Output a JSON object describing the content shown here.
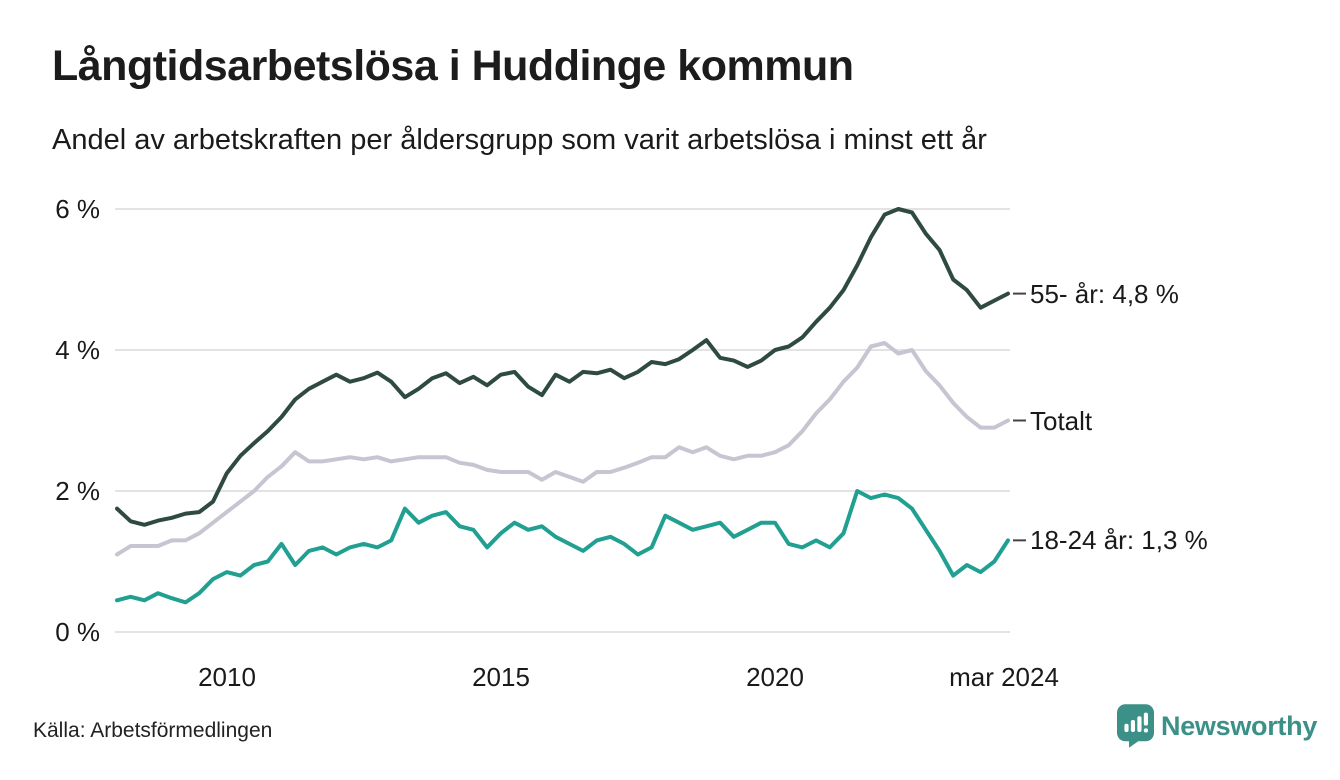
{
  "header": {
    "title": "Långtidsarbetslösa i Huddinge kommun",
    "subtitle": "Andel av arbetskraften per åldersgrupp som varit arbetslösa i minst ett år"
  },
  "footer": {
    "source": "Källa: Arbetsförmedlingen",
    "brand": "Newsworthy"
  },
  "colors": {
    "text": "#1a1a1a",
    "grid": "#e3e3e5",
    "label_dash": "#444444",
    "brand_teal": "#3b9187",
    "series_55": "#2e4a42",
    "series_total": "#c6c5d1",
    "series_18_24": "#21a092"
  },
  "chart_data": {
    "type": "line",
    "title": "Långtidsarbetslösa i Huddinge kommun",
    "subtitle": "Andel av arbetskraften per åldersgrupp som varit arbetslösa i minst ett år",
    "xlabel": "",
    "ylabel": "",
    "xlim": [
      2008.0,
      2024.25
    ],
    "ylim": [
      0,
      6
    ],
    "grid": true,
    "legend_position": "right-end-labels",
    "x": [
      2008.0,
      2008.25,
      2008.5,
      2008.75,
      2009.0,
      2009.25,
      2009.5,
      2009.75,
      2010.0,
      2010.25,
      2010.5,
      2010.75,
      2011.0,
      2011.25,
      2011.5,
      2011.75,
      2012.0,
      2012.25,
      2012.5,
      2012.75,
      2013.0,
      2013.25,
      2013.5,
      2013.75,
      2014.0,
      2014.25,
      2014.5,
      2014.75,
      2015.0,
      2015.25,
      2015.5,
      2015.75,
      2016.0,
      2016.25,
      2016.5,
      2016.75,
      2017.0,
      2017.25,
      2017.5,
      2017.75,
      2018.0,
      2018.25,
      2018.5,
      2018.75,
      2019.0,
      2019.25,
      2019.5,
      2019.75,
      2020.0,
      2020.25,
      2020.5,
      2020.75,
      2021.0,
      2021.25,
      2021.5,
      2021.75,
      2022.0,
      2022.25,
      2022.5,
      2022.75,
      2023.0,
      2023.25,
      2023.5,
      2023.75,
      2024.0,
      2024.25
    ],
    "series": [
      {
        "name": "55- år",
        "label": "55- år: 4,8 %",
        "end_value_text": "4,8 %",
        "color": "#2e4a42",
        "values": [
          1.75,
          1.57,
          1.52,
          1.58,
          1.62,
          1.68,
          1.7,
          1.85,
          2.25,
          2.5,
          2.68,
          2.85,
          3.05,
          3.3,
          3.45,
          3.55,
          3.65,
          3.55,
          3.6,
          3.68,
          3.55,
          3.33,
          3.45,
          3.6,
          3.67,
          3.53,
          3.62,
          3.5,
          3.65,
          3.69,
          3.48,
          3.36,
          3.65,
          3.55,
          3.69,
          3.67,
          3.72,
          3.6,
          3.69,
          3.83,
          3.8,
          3.87,
          4.0,
          4.14,
          3.89,
          3.85,
          3.76,
          3.85,
          4.0,
          4.05,
          4.18,
          4.4,
          4.6,
          4.85,
          5.2,
          5.6,
          5.92,
          6.0,
          5.95,
          5.65,
          5.42,
          5.0,
          4.85,
          4.6,
          4.7,
          4.8
        ]
      },
      {
        "name": "Totalt",
        "label": "Totalt",
        "end_value_text": "",
        "color": "#c6c5d1",
        "values": [
          1.1,
          1.22,
          1.22,
          1.22,
          1.3,
          1.3,
          1.4,
          1.55,
          1.7,
          1.85,
          2.0,
          2.2,
          2.35,
          2.55,
          2.42,
          2.42,
          2.45,
          2.48,
          2.45,
          2.48,
          2.42,
          2.45,
          2.48,
          2.48,
          2.48,
          2.4,
          2.37,
          2.3,
          2.27,
          2.27,
          2.27,
          2.16,
          2.27,
          2.2,
          2.13,
          2.27,
          2.27,
          2.33,
          2.4,
          2.48,
          2.48,
          2.62,
          2.55,
          2.62,
          2.5,
          2.45,
          2.5,
          2.5,
          2.55,
          2.65,
          2.85,
          3.1,
          3.3,
          3.55,
          3.75,
          4.05,
          4.1,
          3.95,
          4.0,
          3.7,
          3.5,
          3.25,
          3.05,
          2.9,
          2.9,
          3.0
        ]
      },
      {
        "name": "18-24 år",
        "label": "18-24 år: 1,3 %",
        "end_value_text": "1,3 %",
        "color": "#21a092",
        "values": [
          0.45,
          0.5,
          0.45,
          0.55,
          0.48,
          0.42,
          0.55,
          0.75,
          0.85,
          0.8,
          0.95,
          1.0,
          1.25,
          0.95,
          1.15,
          1.2,
          1.1,
          1.2,
          1.25,
          1.2,
          1.3,
          1.75,
          1.55,
          1.65,
          1.7,
          1.5,
          1.45,
          1.2,
          1.4,
          1.55,
          1.45,
          1.5,
          1.35,
          1.25,
          1.15,
          1.3,
          1.35,
          1.25,
          1.1,
          1.2,
          1.65,
          1.55,
          1.45,
          1.5,
          1.55,
          1.35,
          1.45,
          1.55,
          1.55,
          1.25,
          1.2,
          1.3,
          1.2,
          1.4,
          2.0,
          1.9,
          1.95,
          1.9,
          1.75,
          1.45,
          1.15,
          0.8,
          0.95,
          0.85,
          1.0,
          1.3
        ]
      }
    ],
    "yticks": [
      {
        "value": 6,
        "label": "6 %"
      },
      {
        "value": 4,
        "label": "4 %"
      },
      {
        "value": 2,
        "label": "2 %"
      },
      {
        "value": 0,
        "label": "0 %"
      }
    ],
    "xticks": [
      {
        "value": 2010.0,
        "label": "2010"
      },
      {
        "value": 2015.0,
        "label": "2015"
      },
      {
        "value": 2020.0,
        "label": "2020"
      },
      {
        "value": 2024.17,
        "label": "mar 2024"
      }
    ]
  }
}
